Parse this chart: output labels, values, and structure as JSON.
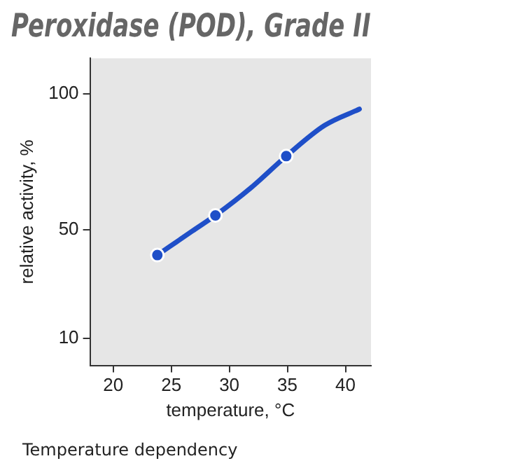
{
  "chart_data": {
    "type": "line",
    "title": "Peroxidase (POD), Grade II",
    "xlabel": "temperature, °C",
    "ylabel": "relative activity, %",
    "xlim": [
      18,
      42.2
    ],
    "xticks": [
      20,
      25,
      30,
      35,
      40
    ],
    "ylim": [
      0,
      113
    ],
    "yticks": [
      10,
      50,
      100
    ],
    "grid": false,
    "legend": false,
    "series": [
      {
        "type": "line",
        "color": "#1f4fc8",
        "marker": "none",
        "x": [
          23.8,
          26.8,
          28.8,
          31.9,
          34.9,
          38.2,
          41.2
        ],
        "values": [
          40.6,
          49.4,
          55.2,
          65.5,
          77,
          88.3,
          94.3
        ]
      },
      {
        "type": "scatter",
        "color": "#1f4fc8",
        "marker": "circle",
        "x": [
          23.8,
          28.8,
          34.9
        ],
        "values": [
          40.6,
          55.2,
          77
        ]
      }
    ],
    "annotations": [
      "Temperature dependency"
    ]
  }
}
